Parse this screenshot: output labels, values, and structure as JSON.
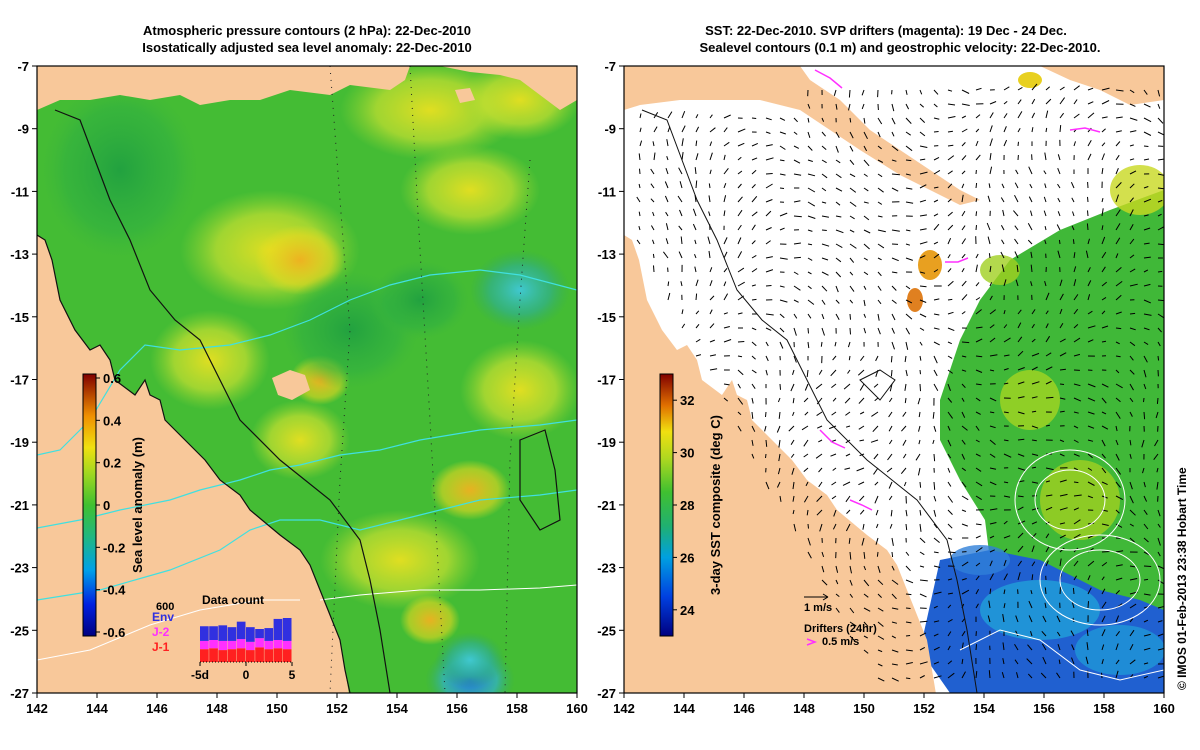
{
  "left_panel": {
    "title_line1": "Atmospheric pressure contours (2 hPa): 22-Dec-2010",
    "title_line2": "Isostatically adjusted sea level anomaly: 22-Dec-2010",
    "colorbar": {
      "label": "Sea level anomaly (m)",
      "ticks": [
        "0.6",
        "0.4",
        "0.2",
        "0",
        "-0.2",
        "-0.4",
        "-0.6"
      ],
      "tick_values": [
        0.6,
        0.4,
        0.2,
        0,
        -0.2,
        -0.4,
        -0.6
      ],
      "range": [
        -0.6,
        0.6
      ]
    },
    "inset": {
      "title": "Data count",
      "ymax_label": "600",
      "legend": [
        {
          "name": "Env",
          "color": "#3030e0"
        },
        {
          "name": "J-2",
          "color": "#ff30ff"
        },
        {
          "name": "J-1",
          "color": "#ff2020"
        }
      ],
      "xticks": [
        "-5d",
        "0",
        "5"
      ],
      "xtick_values": [
        -5,
        0,
        5
      ],
      "ymax": 600,
      "bars": [
        {
          "d": -5,
          "j1": 140,
          "j2": 90,
          "env": 160
        },
        {
          "d": -4,
          "j1": 150,
          "j2": 90,
          "env": 150
        },
        {
          "d": -3,
          "j1": 130,
          "j2": 100,
          "env": 170
        },
        {
          "d": -2,
          "j1": 140,
          "j2": 90,
          "env": 150
        },
        {
          "d": -1,
          "j1": 150,
          "j2": 100,
          "env": 190
        },
        {
          "d": 0,
          "j1": 130,
          "j2": 90,
          "env": 160
        },
        {
          "d": 1,
          "j1": 160,
          "j2": 100,
          "env": 100
        },
        {
          "d": 2,
          "j1": 140,
          "j2": 90,
          "env": 140
        },
        {
          "d": 3,
          "j1": 150,
          "j2": 90,
          "env": 230
        },
        {
          "d": 4,
          "j1": 140,
          "j2": 90,
          "env": 250
        }
      ]
    }
  },
  "right_panel": {
    "title_line1": "SST: 22-Dec-2010. SVP drifters (magenta): 19 Dec - 24 Dec.",
    "title_line2": "Sealevel contours (0.1 m) and geostrophic velocity: 22-Dec-2010.",
    "colorbar": {
      "label": "3-day SST composite (deg C)",
      "ticks": [
        "32",
        "30",
        "28",
        "26",
        "24"
      ],
      "tick_values": [
        32,
        30,
        28,
        26,
        24
      ],
      "range": [
        23,
        33
      ]
    },
    "velocity_scale": "1 m/s",
    "drifter_title": "Drifters (24hr)",
    "drifter_scale": "0.5 m/s"
  },
  "axes": {
    "lon_ticks": [
      "142",
      "144",
      "146",
      "148",
      "150",
      "152",
      "154",
      "156",
      "158",
      "160"
    ],
    "lon_values": [
      142,
      144,
      146,
      148,
      150,
      152,
      154,
      156,
      158,
      160
    ],
    "lat_ticks": [
      "-7",
      "-9",
      "-11",
      "-13",
      "-15",
      "-17",
      "-19",
      "-21",
      "-23",
      "-25",
      "-27"
    ],
    "lat_values": [
      -7,
      -9,
      -11,
      -13,
      -15,
      -17,
      -19,
      -21,
      -23,
      -25,
      -27
    ],
    "lon_range": [
      142,
      160
    ],
    "lat_range": [
      -27,
      -7
    ]
  },
  "credit": "© IMOS 01-Feb-2013 23:38 Hobart Time",
  "colors": {
    "land": "#f8c89a",
    "ocean_mid": "#48c030",
    "sst_background": "#ffffff"
  }
}
